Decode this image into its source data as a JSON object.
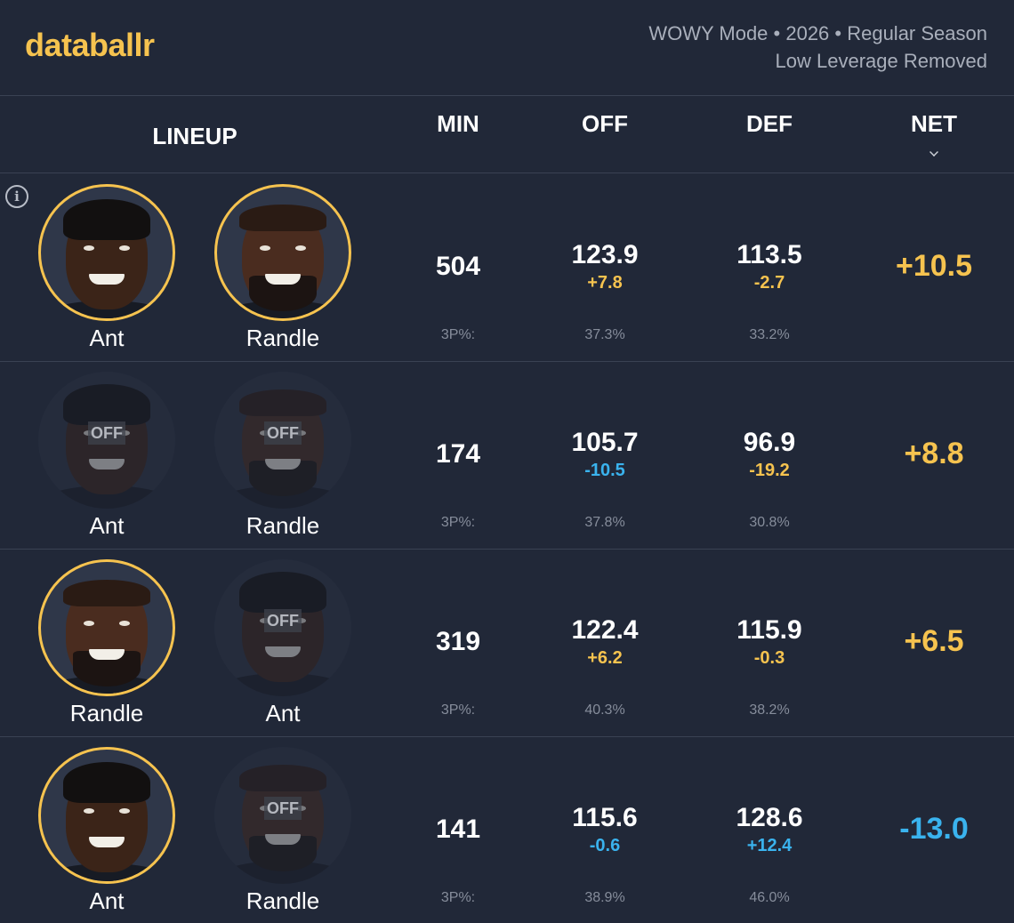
{
  "brand": "databallr",
  "meta": {
    "line1": "WOWY Mode • 2026 • Regular Season",
    "line2": "Low Leverage Removed"
  },
  "columns": {
    "lineup": "LINEUP",
    "min": "MIN",
    "off": "OFF",
    "def": "DEF",
    "net": "NET"
  },
  "off_badge": "OFF",
  "three_pt_label": "3P%:",
  "colors": {
    "accent": "#f6c34f",
    "negative": "#3ab3ee",
    "background": "#212838"
  },
  "rows": [
    {
      "players": [
        {
          "name": "Ant",
          "status": "on"
        },
        {
          "name": "Randle",
          "status": "on"
        }
      ],
      "min": "504",
      "off": "123.9",
      "off_delta": "+7.8",
      "off_3p": "37.3%",
      "def": "113.5",
      "def_delta": "-2.7",
      "def_3p": "33.2%",
      "net": "+10.5"
    },
    {
      "players": [
        {
          "name": "Ant",
          "status": "off"
        },
        {
          "name": "Randle",
          "status": "off"
        }
      ],
      "min": "174",
      "off": "105.7",
      "off_delta": "-10.5",
      "off_3p": "37.8%",
      "def": "96.9",
      "def_delta": "-19.2",
      "def_3p": "30.8%",
      "net": "+8.8"
    },
    {
      "players": [
        {
          "name": "Randle",
          "status": "on"
        },
        {
          "name": "Ant",
          "status": "off"
        }
      ],
      "min": "319",
      "off": "122.4",
      "off_delta": "+6.2",
      "off_3p": "40.3%",
      "def": "115.9",
      "def_delta": "-0.3",
      "def_3p": "38.2%",
      "net": "+6.5"
    },
    {
      "players": [
        {
          "name": "Ant",
          "status": "on"
        },
        {
          "name": "Randle",
          "status": "off"
        }
      ],
      "min": "141",
      "off": "115.6",
      "off_delta": "-0.6",
      "off_3p": "38.9%",
      "def": "128.6",
      "def_delta": "+12.4",
      "def_3p": "46.0%",
      "net": "-13.0"
    }
  ]
}
